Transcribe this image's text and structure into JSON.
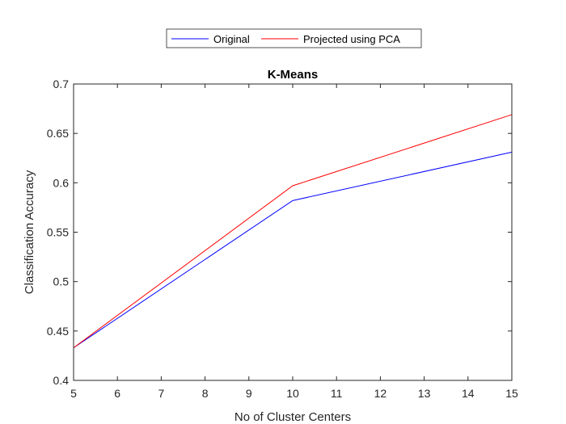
{
  "chart_data": {
    "type": "line",
    "title": "K-Means",
    "xlabel": "No of Cluster Centers",
    "ylabel": "Classification Accuracy",
    "xlim": [
      5,
      15
    ],
    "ylim": [
      0.4,
      0.7
    ],
    "xticks": [
      "5",
      "6",
      "7",
      "8",
      "9",
      "10",
      "11",
      "12",
      "13",
      "14",
      "15"
    ],
    "yticks": [
      "0.4",
      "0.45",
      "0.5",
      "0.55",
      "0.6",
      "0.65",
      "0.7"
    ],
    "grid": false,
    "legend_position": "top-outside",
    "x": [
      5,
      10,
      15
    ],
    "series": [
      {
        "name": "Original",
        "color": "#0000ff",
        "values": [
          0.433,
          0.582,
          0.631
        ]
      },
      {
        "name": "Projected using PCA",
        "color": "#ff0000",
        "values": [
          0.433,
          0.597,
          0.669
        ]
      }
    ]
  }
}
